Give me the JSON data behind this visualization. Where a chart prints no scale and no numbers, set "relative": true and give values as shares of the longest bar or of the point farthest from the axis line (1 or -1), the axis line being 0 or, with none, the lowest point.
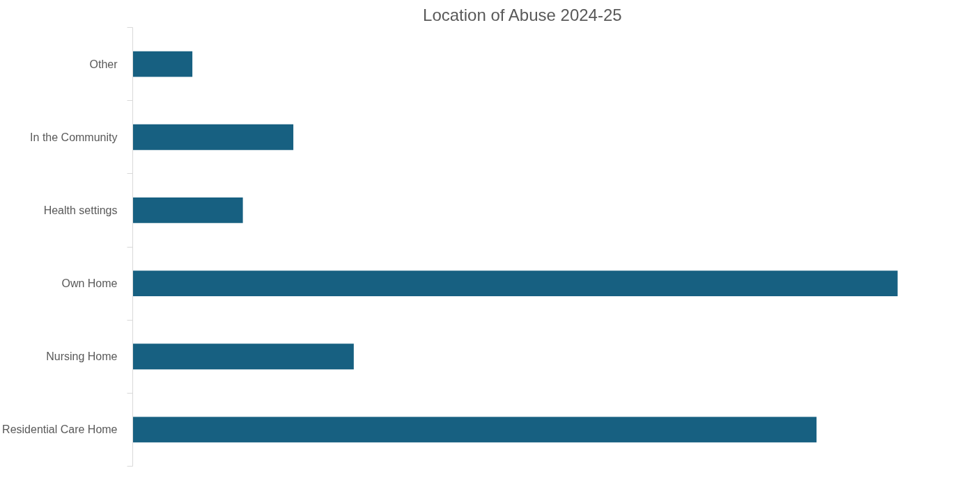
{
  "chart_data": {
    "type": "bar",
    "orientation": "horizontal",
    "relative": true,
    "title": "Location of Abuse 2024-25",
    "categories": [
      "Other",
      "In the Community",
      "Health settings",
      "Own Home",
      "Nursing Home",
      "Residential Care Home"
    ],
    "values": [
      0.078,
      0.21,
      0.144,
      1,
      0.289,
      0.894
    ],
    "color": "#176081",
    "grid": false
  }
}
